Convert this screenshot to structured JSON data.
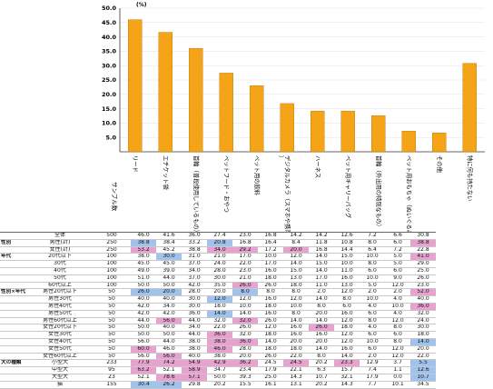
{
  "chart_data": {
    "type": "bar",
    "unit_label": "(%)",
    "yticks": [
      "50.0",
      "45.0",
      "40.0",
      "35.0",
      "30.0",
      "25.0",
      "20.0",
      "15.0",
      "10.0",
      "5.0"
    ],
    "ylim": [
      0,
      50
    ],
    "sample_header": "サンプル数",
    "categories": [
      "リード",
      "エチケット袋",
      "首輪（普段使用しているもの）",
      "ペットフード・おやつ",
      "ペット用の飲料",
      "デジタルカメラ（スマホや携帯を除く）",
      "ハーネス",
      "ペット用キャリーバッグ",
      "首輪（外出用の特別なもの）",
      "ペット用おもちゃ（ぬいぐるみ等）",
      "その他",
      "特に何も持たない"
    ],
    "values": [
      46.0,
      41.6,
      36.0,
      27.4,
      23.0,
      16.8,
      14.2,
      14.2,
      12.6,
      7.2,
      6.6,
      30.8
    ],
    "bar_color": "#f4a416"
  },
  "table": {
    "rows": [
      {
        "group": "",
        "label": "全体",
        "n": "500",
        "vals": [
          "46.0",
          "41.6",
          "36.0",
          "27.4",
          "23.0",
          "16.8",
          "14.2",
          "14.2",
          "12.6",
          "7.2",
          "6.6",
          "30.8"
        ],
        "hl": []
      },
      {
        "group": "性別",
        "label": "男性(計)",
        "n": "250",
        "vals": [
          "38.8",
          "38.4",
          "33.2",
          "20.8",
          "16.8",
          "16.4",
          "8.4",
          "11.8",
          "10.8",
          "8.0",
          "6.0",
          "38.8"
        ],
        "hl": [
          "l",
          "",
          "",
          "l",
          "",
          "",
          "",
          "",
          "",
          "",
          "",
          "h"
        ]
      },
      {
        "group": "",
        "label": "女性(計)",
        "n": "250",
        "vals": [
          "53.2",
          "45.2",
          "38.8",
          "34.0",
          "29.2",
          "17.2",
          "20.0",
          "16.8",
          "14.4",
          "6.4",
          "7.2",
          "22.8"
        ],
        "hl": [
          "h",
          "",
          "",
          "h",
          "h",
          "",
          "h",
          "",
          "",
          "",
          "",
          ""
        ]
      },
      {
        "group": "年代",
        "label": "20代以下",
        "n": "100",
        "vals": [
          "38.0",
          "30.0",
          "31.0",
          "21.0",
          "17.0",
          "10.0",
          "12.0",
          "14.0",
          "15.0",
          "10.0",
          "5.0",
          "41.0"
        ],
        "hl": [
          "",
          "l",
          "",
          "",
          "",
          "",
          "",
          "",
          "",
          "",
          "",
          "h"
        ]
      },
      {
        "group": "",
        "label": "30代",
        "n": "100",
        "vals": [
          "45.0",
          "45.0",
          "37.0",
          "24.0",
          "22.0",
          "17.0",
          "14.0",
          "15.0",
          "10.0",
          "8.0",
          "5.0",
          "29.0"
        ],
        "hl": []
      },
      {
        "group": "",
        "label": "40代",
        "n": "100",
        "vals": [
          "49.0",
          "39.0",
          "34.0",
          "28.0",
          "23.0",
          "16.0",
          "15.0",
          "14.0",
          "11.0",
          "6.0",
          "6.0",
          "25.0"
        ],
        "hl": []
      },
      {
        "group": "",
        "label": "50代",
        "n": "100",
        "vals": [
          "51.0",
          "44.0",
          "37.0",
          "30.0",
          "21.0",
          "18.0",
          "13.0",
          "17.0",
          "16.0",
          "10.0",
          "9.0",
          "26.0"
        ],
        "hl": []
      },
      {
        "group": "",
        "label": "60代以上",
        "n": "100",
        "vals": [
          "50.0",
          "50.0",
          "42.0",
          "35.0",
          "26.0",
          "26.0",
          "18.0",
          "11.0",
          "13.0",
          "5.0",
          "12.0",
          "23.0"
        ],
        "hl": [
          "",
          "",
          "",
          "",
          "h",
          "",
          "",
          "",
          "",
          "",
          "",
          ""
        ]
      },
      {
        "group": "性別×年代",
        "label": "男性20代以下",
        "n": "50",
        "vals": [
          "26.0",
          "20.0",
          "28.0",
          "20.0",
          "8.0",
          "8.0",
          "8.0",
          "2.0",
          "12.0",
          "2.0",
          "2.0",
          "52.0"
        ],
        "hl": [
          "l",
          "l",
          "",
          "",
          "l",
          "",
          "",
          "",
          "",
          "",
          "",
          "h"
        ]
      },
      {
        "group": "",
        "label": "男性30代",
        "n": "50",
        "vals": [
          "40.0",
          "40.0",
          "30.0",
          "12.0",
          "12.0",
          "16.0",
          "12.0",
          "14.0",
          "8.0",
          "10.0",
          "4.0",
          "40.0"
        ],
        "hl": [
          "",
          "",
          "",
          "l",
          "",
          "",
          "",
          "",
          "",
          "",
          "",
          ""
        ]
      },
      {
        "group": "",
        "label": "男性40代",
        "n": "50",
        "vals": [
          "42.0",
          "34.0",
          "30.0",
          "18.0",
          "10.0",
          "18.0",
          "10.0",
          "8.0",
          "6.0",
          "4.0",
          "10.0",
          "36.0"
        ],
        "hl": [
          "",
          "",
          "",
          "",
          "",
          "",
          "",
          "",
          "",
          "",
          "",
          "h"
        ]
      },
      {
        "group": "",
        "label": "男性50代",
        "n": "50",
        "vals": [
          "42.0",
          "42.0",
          "36.0",
          "14.0",
          "14.0",
          "16.0",
          "8.0",
          "20.0",
          "16.0",
          "6.0",
          "4.0",
          "32.0"
        ],
        "hl": [
          "",
          "",
          "",
          "l",
          "",
          "",
          "",
          "",
          "",
          "",
          "",
          ""
        ]
      },
      {
        "group": "",
        "label": "男性60代以上",
        "n": "50",
        "vals": [
          "44.0",
          "56.0",
          "44.0",
          "32.0",
          "32.0",
          "26.0",
          "14.0",
          "14.0",
          "12.0",
          "8.0",
          "12.0",
          "24.0"
        ],
        "hl": [
          "",
          "h",
          "",
          "",
          "h",
          "",
          "",
          "",
          "",
          "",
          "",
          ""
        ]
      },
      {
        "group": "",
        "label": "女性20代以下",
        "n": "50",
        "vals": [
          "50.0",
          "40.0",
          "34.0",
          "22.0",
          "26.0",
          "12.0",
          "16.0",
          "26.0",
          "18.0",
          "4.0",
          "8.0",
          "30.0"
        ],
        "hl": [
          "",
          "",
          "",
          "",
          "",
          "",
          "",
          "h",
          "",
          "",
          "",
          ""
        ]
      },
      {
        "group": "",
        "label": "女性30代",
        "n": "50",
        "vals": [
          "50.0",
          "50.0",
          "44.0",
          "36.0",
          "32.0",
          "18.0",
          "16.0",
          "16.0",
          "12.0",
          "6.0",
          "6.0",
          "18.0"
        ],
        "hl": [
          "",
          "",
          "",
          "h",
          "",
          "",
          "",
          "",
          "",
          "",
          "",
          ""
        ]
      },
      {
        "group": "",
        "label": "女性40代",
        "n": "50",
        "vals": [
          "56.0",
          "44.0",
          "38.0",
          "38.0",
          "36.0",
          "14.0",
          "20.0",
          "20.0",
          "12.0",
          "10.0",
          "8.0",
          "14.0"
        ],
        "hl": [
          "",
          "",
          "",
          "h",
          "h",
          "",
          "",
          "",
          "",
          "",
          "",
          "l"
        ]
      },
      {
        "group": "",
        "label": "女性50代",
        "n": "50",
        "vals": [
          "60.0",
          "46.0",
          "38.0",
          "46.0",
          "28.0",
          "18.0",
          "18.0",
          "14.0",
          "16.0",
          "6.0",
          "12.0",
          "20.0"
        ],
        "hl": [
          "h",
          "",
          "",
          "h",
          "",
          "",
          "",
          "",
          "",
          "",
          "",
          ""
        ]
      },
      {
        "group": "",
        "label": "女性60代以上",
        "n": "50",
        "vals": [
          "56.0",
          "56.0",
          "40.0",
          "38.0",
          "20.0",
          "26.0",
          "22.0",
          "8.0",
          "14.0",
          "2.0",
          "12.0",
          "22.0"
        ],
        "hl": [
          "",
          "h",
          "",
          "",
          "",
          "",
          "",
          "",
          "",
          "",
          "",
          ""
        ]
      },
      {
        "group": "犬の種類",
        "label": "小型犬",
        "n": "233",
        "vals": [
          "77.9",
          "74.2",
          "54.9",
          "42.9",
          "36.2",
          "24.5",
          "24.5",
          "20.2",
          "23.3",
          "12.9",
          "3.7",
          "5.5"
        ],
        "hl": [
          "h",
          "h",
          "h",
          "h",
          "h",
          "",
          "h",
          "",
          "h",
          "",
          "",
          "l"
        ]
      },
      {
        "group": "",
        "label": "中型犬",
        "n": "95",
        "vals": [
          "63.2",
          "52.1",
          "58.9",
          "34.7",
          "23.4",
          "17.9",
          "22.1",
          "6.3",
          "15.7",
          "7.4",
          "1.1",
          "12.6"
        ],
        "hl": [
          "h",
          "",
          "h",
          "",
          "",
          "",
          "",
          "",
          "",
          "",
          "",
          "l"
        ]
      },
      {
        "group": "",
        "label": "大型犬",
        "n": "23",
        "vals": [
          "52.1",
          "78.6",
          "57.1",
          "50.0",
          "39.3",
          "25.0",
          "14.3",
          "10.7",
          "32.1",
          "17.9",
          "0.0",
          "10.7"
        ],
        "hl": [
          "",
          "h",
          "h",
          "",
          "",
          "",
          "",
          "",
          "",
          "",
          "",
          "l"
        ]
      },
      {
        "group": "",
        "label": "猫",
        "n": "155",
        "vals": [
          "30.4",
          "26.2",
          "29.8",
          "20.2",
          "15.5",
          "16.1",
          "13.1",
          "20.2",
          "14.3",
          "7.7",
          "10.1",
          "34.5"
        ],
        "hl": [
          "l",
          "l",
          "",
          "",
          "",
          "",
          "",
          "",
          "",
          "",
          "",
          ""
        ]
      }
    ]
  }
}
